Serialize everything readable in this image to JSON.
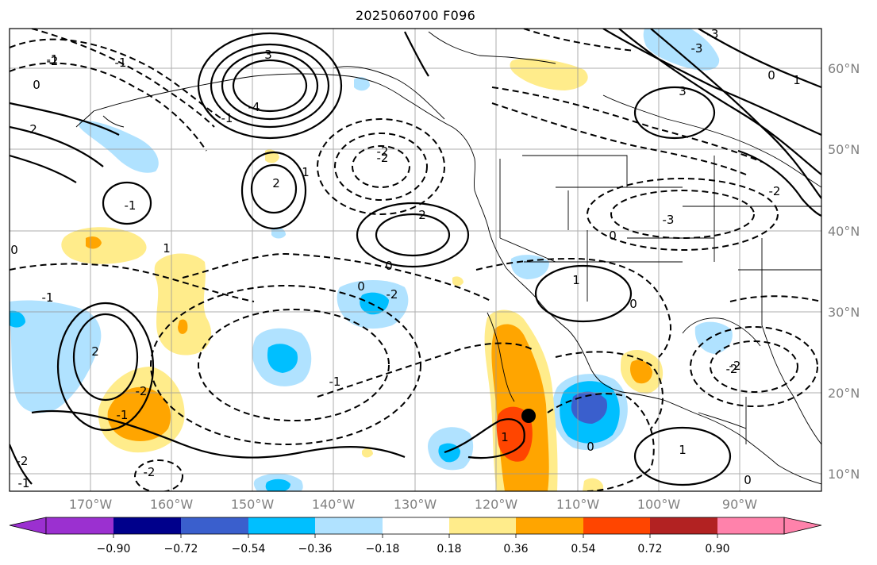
{
  "title": "2025060700 F096",
  "lat_labels": [
    "60°N",
    "50°N",
    "40°N",
    "30°N",
    "20°N",
    "10°N"
  ],
  "lon_labels": [
    "170°W",
    "160°W",
    "150°W",
    "140°W",
    "130°W",
    "120°W",
    "110°W",
    "100°W",
    "90°W"
  ],
  "colorbar": {
    "colors": [
      "#9b30d0",
      "#00008b",
      "#3a5fcd",
      "#00bfff",
      "#b0e2ff",
      "#ffffff",
      "#ffec8b",
      "#ffa500",
      "#ff4500",
      "#b22222",
      "#ff82ab"
    ],
    "ticks": [
      "−0.90",
      "−0.72",
      "−0.54",
      "−0.36",
      "−0.18",
      "0.18",
      "0.36",
      "0.54",
      "0.72",
      "0.90"
    ]
  },
  "contour_labels": [
    "3",
    "-4",
    "2",
    "1",
    "2",
    "-2",
    "0",
    "0",
    "-1",
    "-2",
    "-1",
    "-2",
    "-3",
    "0",
    "-2",
    "2",
    "-1",
    "1",
    "0",
    "-3",
    "-2",
    "-2",
    "0",
    "1",
    "1",
    "-1",
    "-2",
    "-1",
    "1",
    "0",
    "-2",
    "-1",
    "-1",
    "-2",
    "0",
    "1",
    "0",
    "-2",
    "2",
    "-3",
    "-1",
    "0",
    "3"
  ],
  "storm_marker": "tropical-cyclone-position"
}
